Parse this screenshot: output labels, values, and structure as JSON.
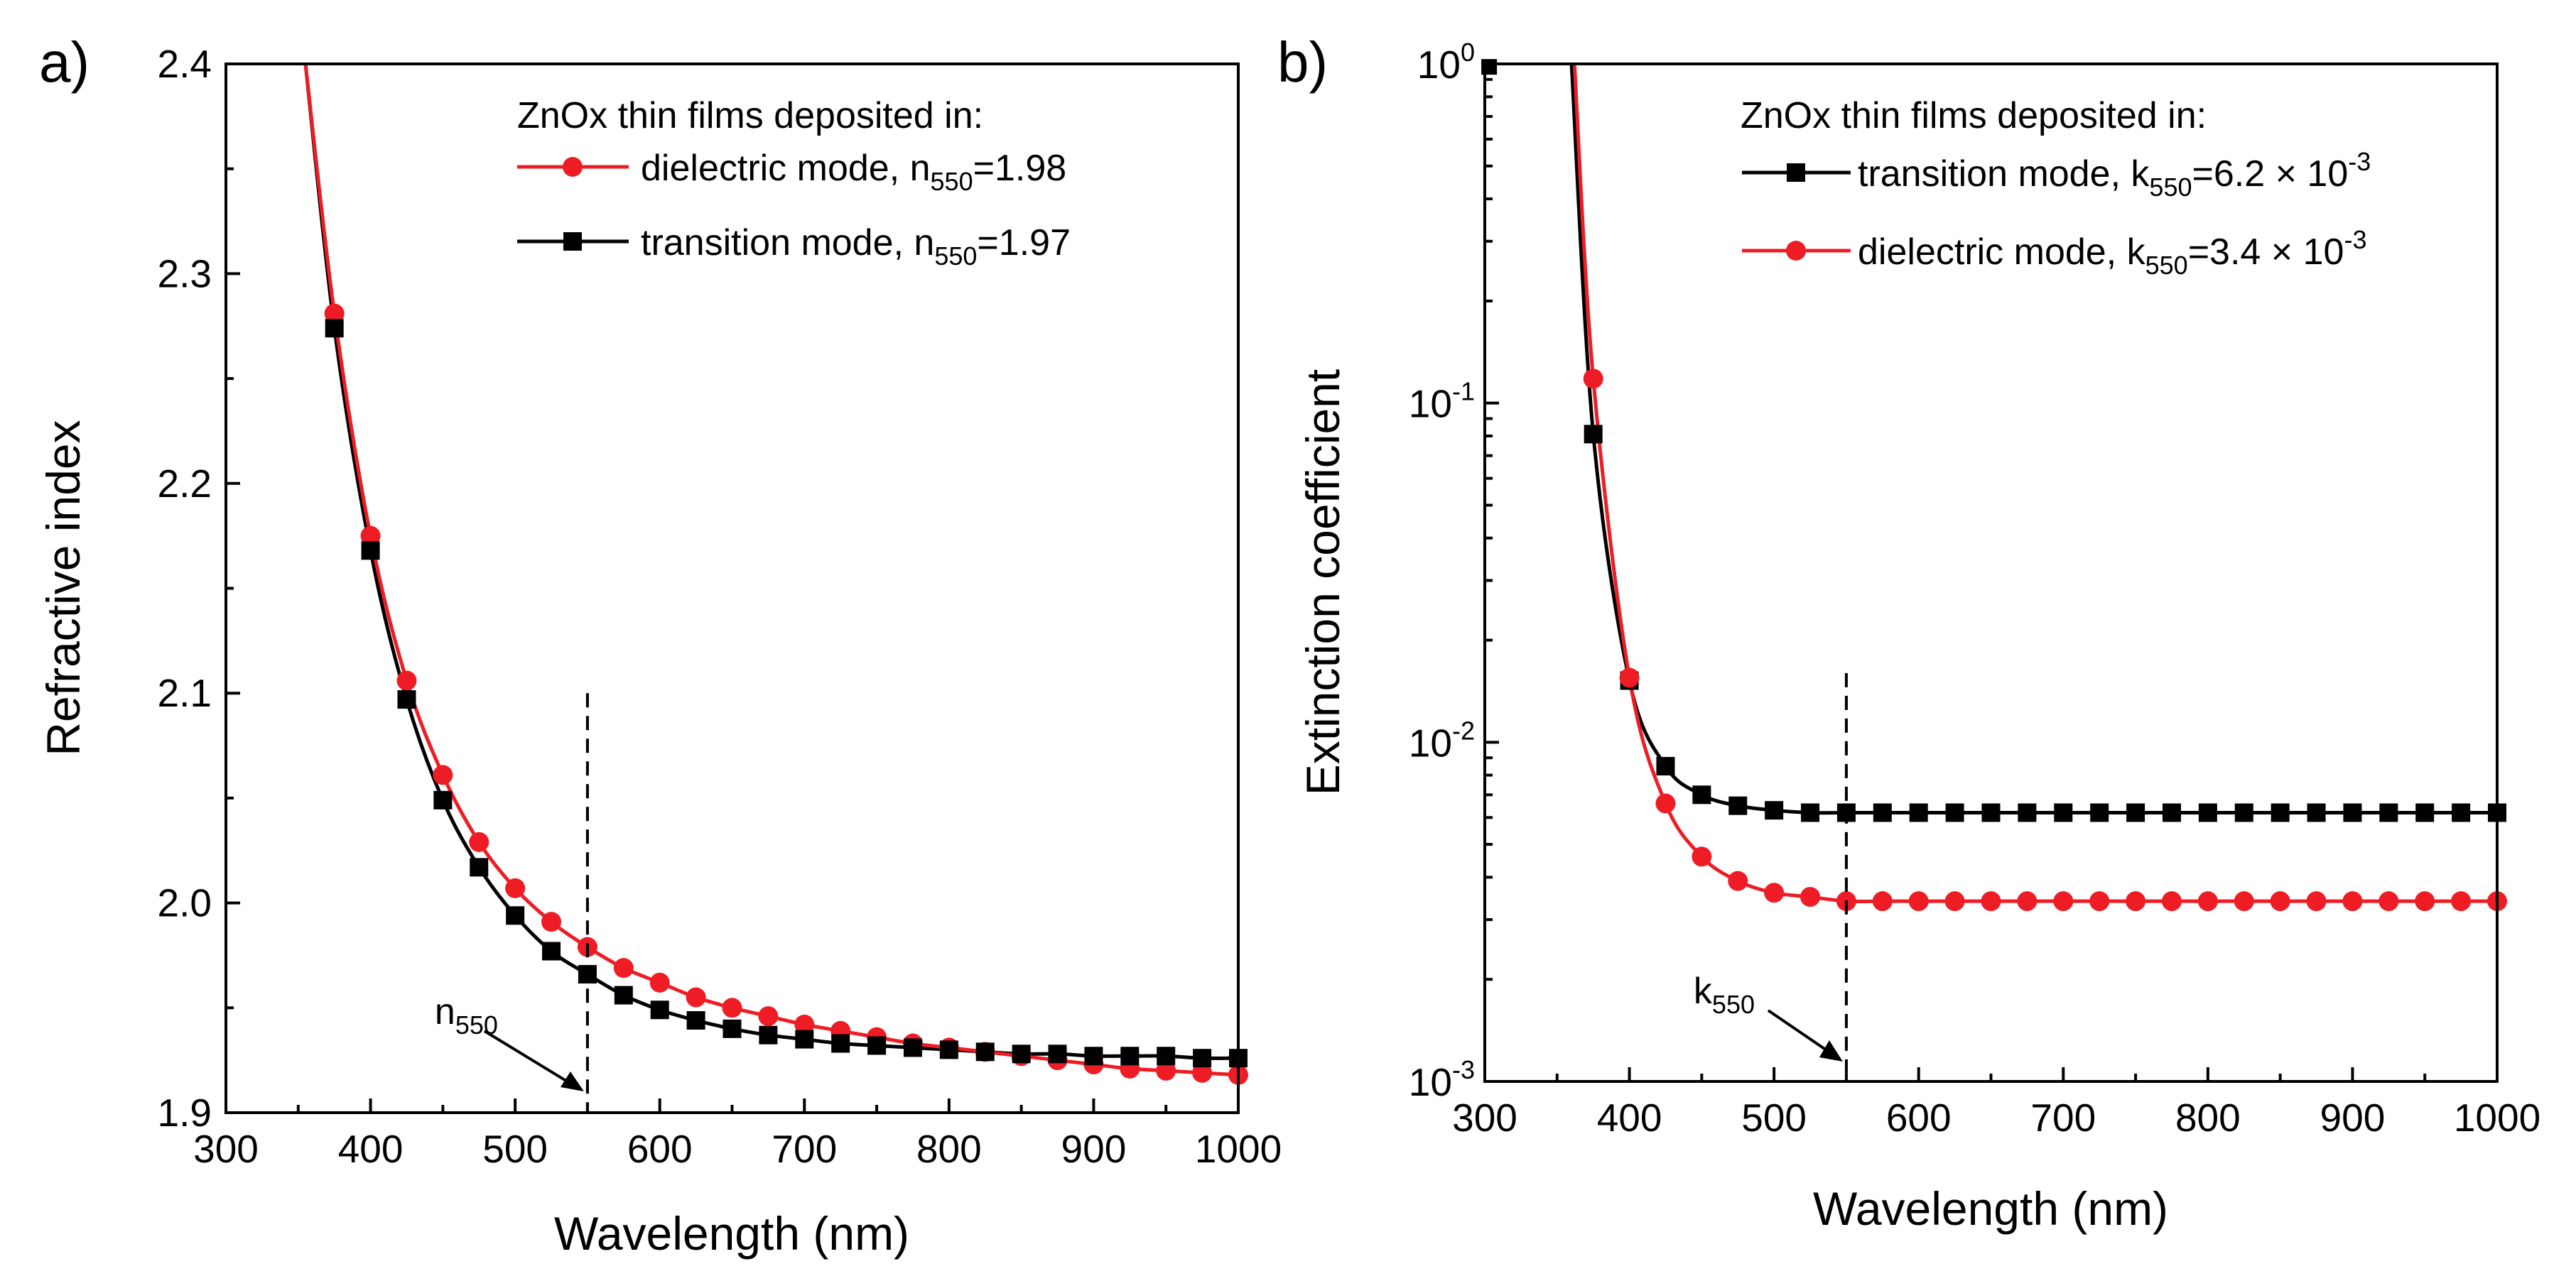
{
  "chart_data": [
    {
      "type": "line",
      "panel_label": "a)",
      "xlabel": "Wavelength (nm)",
      "ylabel": "Refractive index",
      "xlim": [
        300,
        1000
      ],
      "ylim": [
        1.9,
        2.4
      ],
      "x_ticks": [
        "300",
        "400",
        "500",
        "600",
        "700",
        "800",
        "900",
        "1000"
      ],
      "y_ticks": [
        "1.9",
        "2.0",
        "2.1",
        "2.2",
        "2.3",
        "2.4"
      ],
      "legend_title": "ZnOx thin films deposited in:",
      "legend_position": "top-right",
      "x": [
        375,
        400,
        425,
        450,
        475,
        500,
        525,
        550,
        575,
        600,
        625,
        650,
        675,
        700,
        725,
        750,
        775,
        800,
        825,
        850,
        875,
        900,
        925,
        950,
        975,
        1000
      ],
      "series": [
        {
          "name": "dielectric mode",
          "legend_main": "dielectric mode, n",
          "legend_sub": "550",
          "legend_tail": "=1.98",
          "color": "#ee1c25",
          "marker": "circle",
          "values": [
            2.281,
            2.175,
            2.106,
            2.061,
            2.029,
            2.007,
            1.991,
            1.979,
            1.969,
            1.962,
            1.955,
            1.95,
            1.946,
            1.942,
            1.939,
            1.936,
            1.933,
            1.931,
            1.929,
            1.927,
            1.925,
            1.923,
            1.921,
            1.92,
            1.919,
            1.918
          ],
          "curve_start": [
            355,
            2.4
          ]
        },
        {
          "name": "transition mode",
          "legend_main": "transition mode, n",
          "legend_sub": "550",
          "legend_tail": "=1.97",
          "color": "#000000",
          "marker": "square",
          "values": [
            2.274,
            2.168,
            2.097,
            2.049,
            2.017,
            1.994,
            1.977,
            1.966,
            1.956,
            1.949,
            1.944,
            1.94,
            1.937,
            1.935,
            1.933,
            1.932,
            1.931,
            1.93,
            1.929,
            1.928,
            1.928,
            1.927,
            1.927,
            1.927,
            1.926,
            1.926
          ],
          "curve_start": [
            355,
            2.4
          ]
        }
      ],
      "marker_line": {
        "x": 550,
        "y_top": 2.1,
        "label_main": "n",
        "label_sub": "550"
      }
    },
    {
      "type": "line",
      "panel_label": "b)",
      "xlabel": "Wavelength (nm)",
      "ylabel": "Extinction coefficient",
      "xlim": [
        300,
        1000
      ],
      "ylim": [
        0.001,
        1
      ],
      "yscale": "log",
      "x_ticks": [
        "300",
        "400",
        "500",
        "600",
        "700",
        "800",
        "900",
        "1000"
      ],
      "y_ticks": [
        {
          "base": "10",
          "exp": "0",
          "value": 1
        },
        {
          "base": "10",
          "exp": "-1",
          "value": 0.1
        },
        {
          "base": "10",
          "exp": "-2",
          "value": 0.01
        },
        {
          "base": "10",
          "exp": "-3",
          "value": 0.001
        }
      ],
      "legend_title": "ZnOx thin films deposited in:",
      "legend_position": "top-right",
      "x": [
        375,
        400,
        425,
        450,
        475,
        500,
        525,
        550,
        575,
        600,
        625,
        650,
        675,
        700,
        725,
        750,
        775,
        800,
        825,
        850,
        875,
        900,
        925,
        950,
        975,
        1000
      ],
      "series": [
        {
          "name": "transition mode",
          "legend_main": "transition mode, k",
          "legend_sub": "550",
          "legend_tail": "=6.2 × 10",
          "legend_sup": "-3",
          "color": "#000000",
          "marker": "square",
          "values": [
            0.081,
            0.0152,
            0.0085,
            0.007,
            0.0065,
            0.0063,
            0.0062,
            0.0062,
            0.0062,
            0.0062,
            0.0062,
            0.0062,
            0.0062,
            0.0062,
            0.0062,
            0.0062,
            0.0062,
            0.0062,
            0.0062,
            0.0062,
            0.0062,
            0.0062,
            0.0062,
            0.0062,
            0.0062,
            0.0062
          ],
          "extra_point": [
            303,
            0.98
          ],
          "curve_start": [
            360,
            1
          ]
        },
        {
          "name": "dielectric mode",
          "legend_main": "dielectric mode, k",
          "legend_sub": "550",
          "legend_tail": "=3.4 × 10",
          "legend_sup": "-3",
          "color": "#ee1c25",
          "marker": "circle",
          "values": [
            0.118,
            0.0155,
            0.0066,
            0.0046,
            0.0039,
            0.0036,
            0.0035,
            0.0034,
            0.0034,
            0.0034,
            0.0034,
            0.0034,
            0.0034,
            0.0034,
            0.0034,
            0.0034,
            0.0034,
            0.0034,
            0.0034,
            0.0034,
            0.0034,
            0.0034,
            0.0034,
            0.0034,
            0.0034,
            0.0034
          ],
          "curve_start": [
            362,
            1
          ]
        }
      ],
      "marker_line": {
        "x": 550,
        "y_top": 0.016,
        "label_main": "k",
        "label_sub": "550"
      }
    }
  ]
}
